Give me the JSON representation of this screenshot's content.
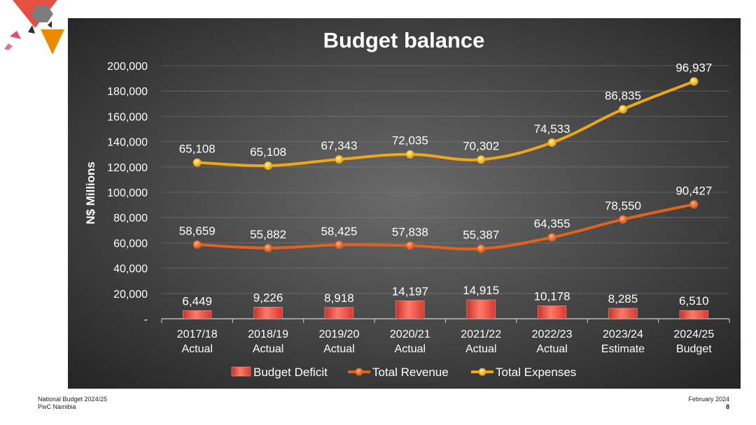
{
  "footer": {
    "left_line1": "National Budget 2024/25",
    "left_line2": "PwC Namibia",
    "right_line1": "February 2024",
    "page_number": "8"
  },
  "colors": {
    "deficit": "#e8503f",
    "revenue": "#e2611d",
    "expenses": "#f2a712",
    "background_center": "#6a6a6a",
    "background_edge": "#262626"
  },
  "chart_data": {
    "type": "bar+line",
    "title": "Budget balance",
    "ylabel": "N$ Millions",
    "ylim": [
      0,
      200000
    ],
    "yticks": [
      0,
      20000,
      40000,
      60000,
      80000,
      100000,
      120000,
      140000,
      160000,
      180000,
      200000
    ],
    "ytick_labels": [
      "-",
      "20,000",
      "40,000",
      "60,000",
      "80,000",
      "100,000",
      "120,000",
      "140,000",
      "160,000",
      "180,000",
      "200,000"
    ],
    "grid": true,
    "legend_position": "bottom",
    "categories": [
      [
        "2017/18",
        "Actual"
      ],
      [
        "2018/19",
        "Actual"
      ],
      [
        "2019/20",
        "Actual"
      ],
      [
        "2020/21",
        "Actual"
      ],
      [
        "2021/22",
        "Actual"
      ],
      [
        "2022/23",
        "Actual"
      ],
      [
        "2023/24",
        "Estimate"
      ],
      [
        "2024/25",
        "Budget"
      ]
    ],
    "series": [
      {
        "name": "Budget Deficit",
        "kind": "bar",
        "values": [
          6449,
          9226,
          8918,
          14197,
          14915,
          10178,
          8285,
          6510
        ],
        "labels": [
          "6,449",
          "9,226",
          "8,918",
          "14,197",
          "14,915",
          "10,178",
          "8,285",
          "6,510"
        ]
      },
      {
        "name": "Total Revenue",
        "kind": "line",
        "values": [
          58659,
          55882,
          58425,
          57838,
          55387,
          64355,
          78550,
          90427
        ],
        "labels": [
          "58,659",
          "55,882",
          "58,425",
          "57,838",
          "55,387",
          "64,355",
          "78,550",
          "90,427"
        ]
      },
      {
        "name": "Total Expenses",
        "kind": "line",
        "plotted_values": [
          123500,
          121000,
          126000,
          130000,
          125800,
          139200,
          165600,
          187600
        ],
        "labels": [
          "65,108",
          "65,108",
          "67,343",
          "72,035",
          "70,302",
          "74,533",
          "86,835",
          "96,937"
        ]
      }
    ]
  }
}
